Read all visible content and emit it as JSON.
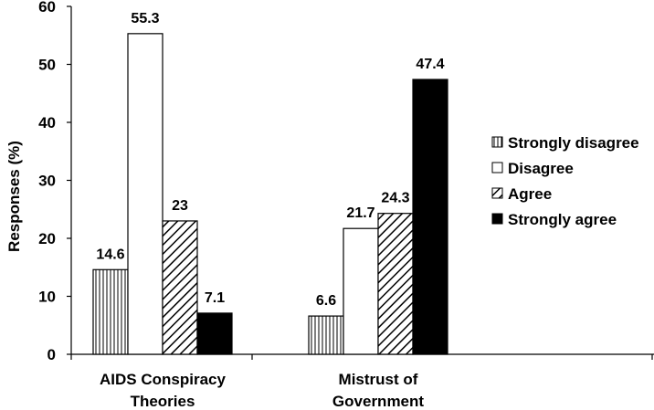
{
  "chart_data": {
    "type": "bar",
    "categories": [
      "AIDS Conspiracy Theories",
      "Mistrust of Government"
    ],
    "category_labels": [
      [
        "AIDS Conspiracy",
        "Theories"
      ],
      [
        "Mistrust of",
        "Government"
      ]
    ],
    "series": [
      {
        "name": "Strongly disagree",
        "values": [
          14.6,
          6.6
        ],
        "pattern": "vertical-lines"
      },
      {
        "name": "Disagree",
        "values": [
          55.3,
          21.7
        ],
        "pattern": "white"
      },
      {
        "name": "Agree",
        "values": [
          23,
          24.3
        ],
        "pattern": "diagonal-lines"
      },
      {
        "name": "Strongly agree",
        "values": [
          7.1,
          47.4
        ],
        "pattern": "solid-black"
      }
    ],
    "data_labels": [
      [
        "14.6",
        "55.3",
        "23",
        "7.1"
      ],
      [
        "6.6",
        "21.7",
        "24.3",
        "47.4"
      ]
    ],
    "ylabel": "Responses (%)",
    "xlabel": "",
    "title": "",
    "ylim": [
      0,
      60
    ],
    "yticks": [
      "0",
      "10",
      "20",
      "30",
      "40",
      "50",
      "60"
    ],
    "grid": false,
    "legend_position": "right"
  }
}
